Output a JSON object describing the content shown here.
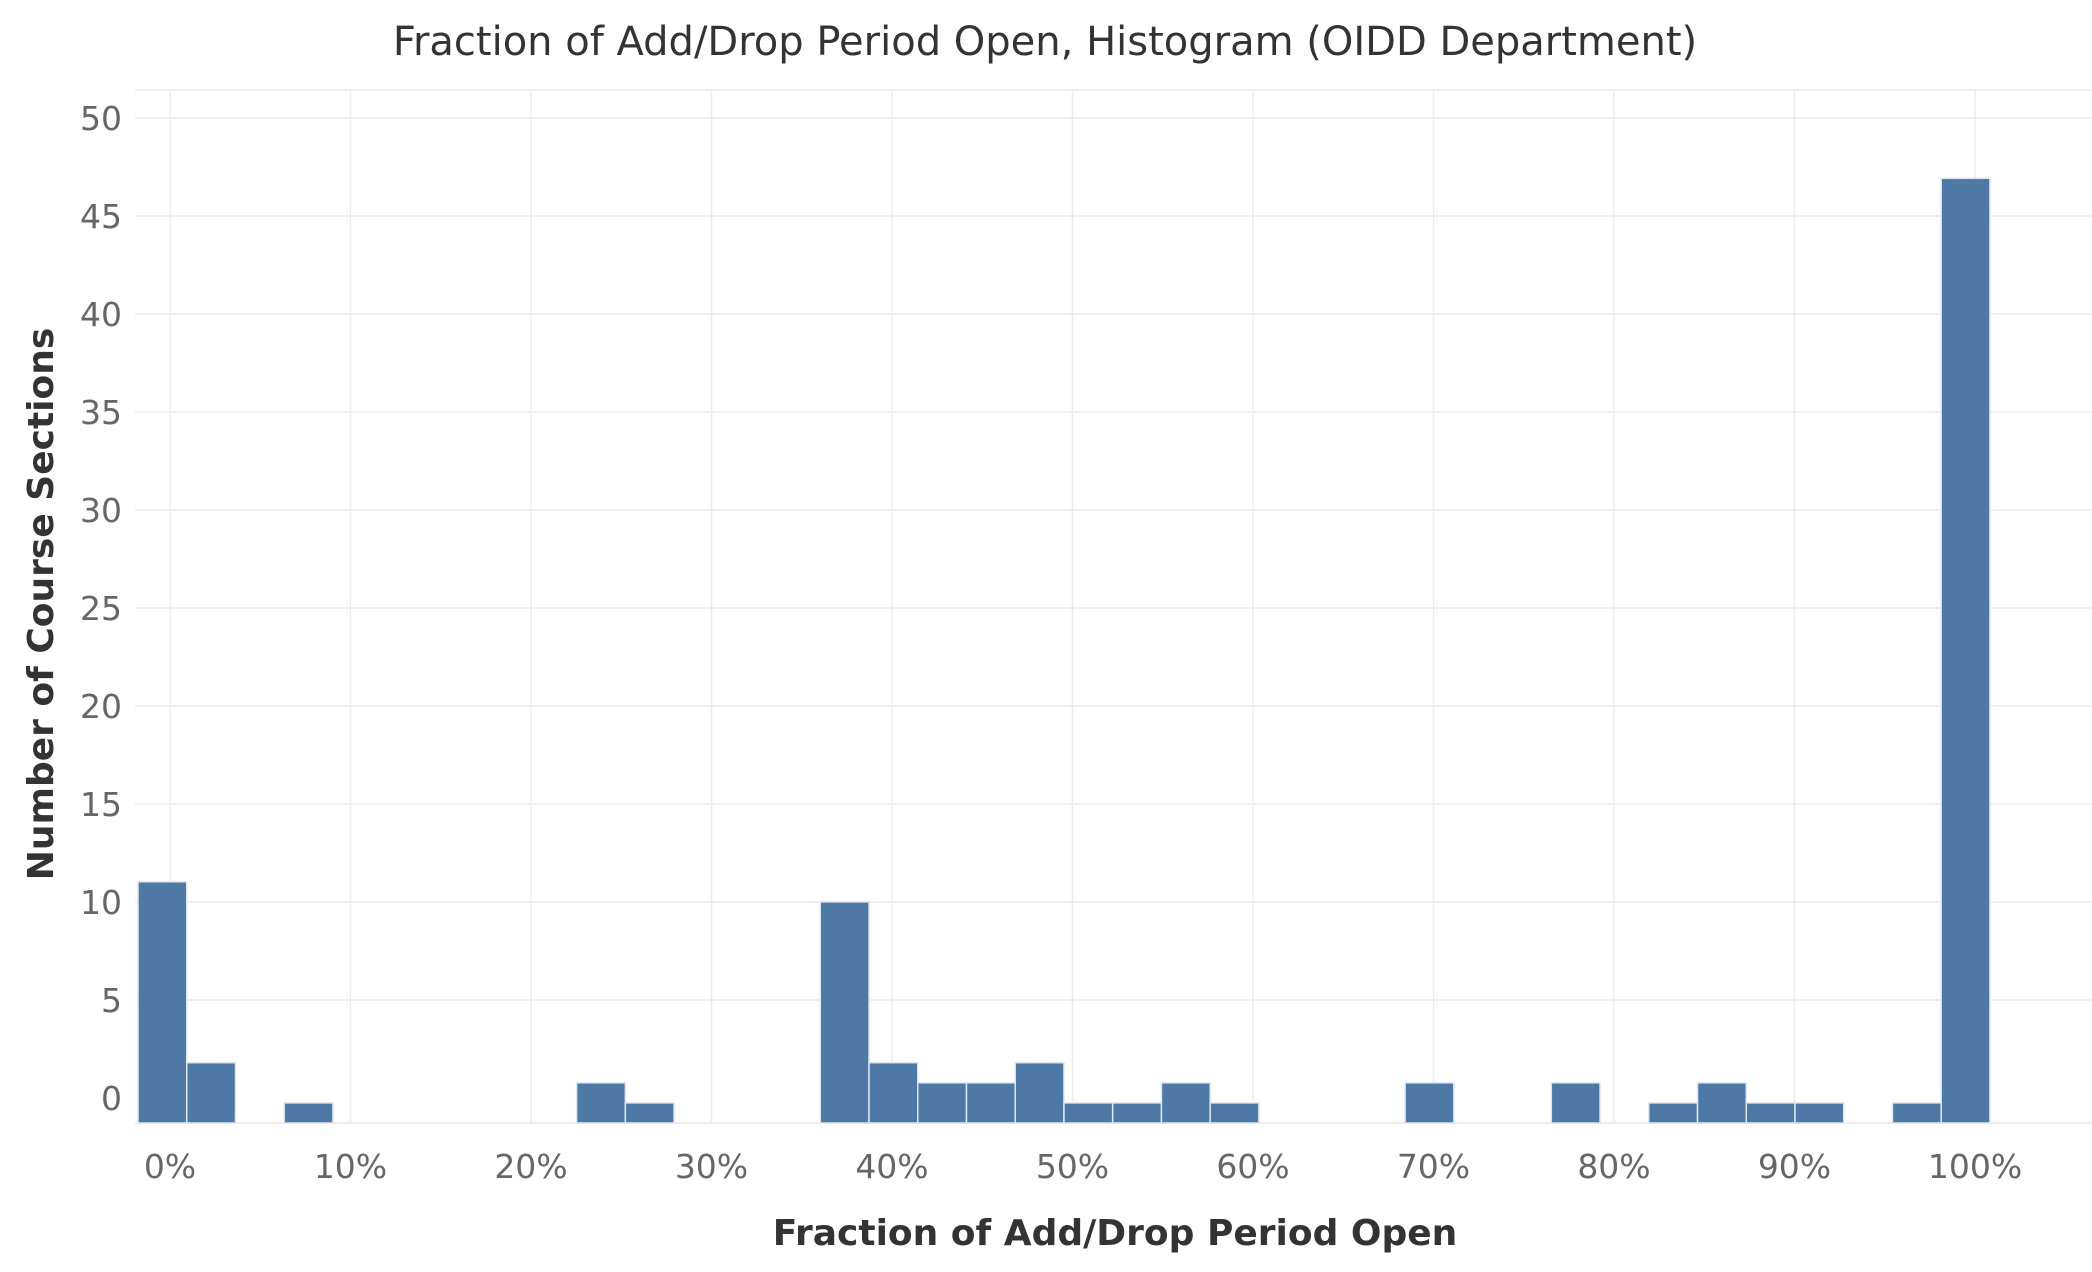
{
  "chart_data": {
    "type": "bar",
    "title": "Fraction of Add/Drop Period Open, Histogram (OIDD Department)",
    "xlabel": "Fraction of Add/Drop Period Open",
    "ylabel": "Number of Course Sections",
    "xlim": [
      0,
      100
    ],
    "ylim": [
      0,
      50
    ],
    "bin_width": 2.7,
    "x_tick_labels": [
      "0%",
      "10%",
      "20%",
      "30%",
      "40%",
      "50%",
      "60%",
      "70%",
      "80%",
      "90%",
      "100%"
    ],
    "x_tick_values": [
      0,
      10,
      20,
      30,
      40,
      50,
      60,
      70,
      80,
      90,
      100
    ],
    "y_tick_labels": [
      "0",
      "5",
      "10",
      "15",
      "20",
      "25",
      "30",
      "35",
      "40",
      "45",
      "50"
    ],
    "y_tick_values": [
      0,
      5,
      10,
      15,
      20,
      25,
      30,
      35,
      40,
      45,
      50
    ],
    "grid": true,
    "legend": "none",
    "bar_color": "#4e79a7",
    "series": [
      {
        "bins": [
          {
            "start": 0.0,
            "end": 2.7,
            "count": 12
          },
          {
            "start": 2.7,
            "end": 5.4,
            "count": 3
          },
          {
            "start": 8.1,
            "end": 10.8,
            "count": 1
          },
          {
            "start": 24.3,
            "end": 27.0,
            "count": 2
          },
          {
            "start": 27.0,
            "end": 29.7,
            "count": 1
          },
          {
            "start": 37.8,
            "end": 40.5,
            "count": 11
          },
          {
            "start": 40.5,
            "end": 43.2,
            "count": 3
          },
          {
            "start": 43.2,
            "end": 45.9,
            "count": 2
          },
          {
            "start": 45.9,
            "end": 48.6,
            "count": 2
          },
          {
            "start": 48.6,
            "end": 51.3,
            "count": 3
          },
          {
            "start": 51.3,
            "end": 54.0,
            "count": 1
          },
          {
            "start": 54.0,
            "end": 56.7,
            "count": 1
          },
          {
            "start": 56.7,
            "end": 59.4,
            "count": 2
          },
          {
            "start": 59.4,
            "end": 62.1,
            "count": 1
          },
          {
            "start": 70.2,
            "end": 72.9,
            "count": 2
          },
          {
            "start": 78.3,
            "end": 81.0,
            "count": 2
          },
          {
            "start": 83.7,
            "end": 86.4,
            "count": 1
          },
          {
            "start": 86.4,
            "end": 89.1,
            "count": 2
          },
          {
            "start": 89.1,
            "end": 91.8,
            "count": 1
          },
          {
            "start": 91.8,
            "end": 94.5,
            "count": 1
          },
          {
            "start": 97.2,
            "end": 99.9,
            "count": 1
          },
          {
            "start": 99.9,
            "end": 102.6,
            "count": 47
          }
        ]
      }
    ]
  }
}
